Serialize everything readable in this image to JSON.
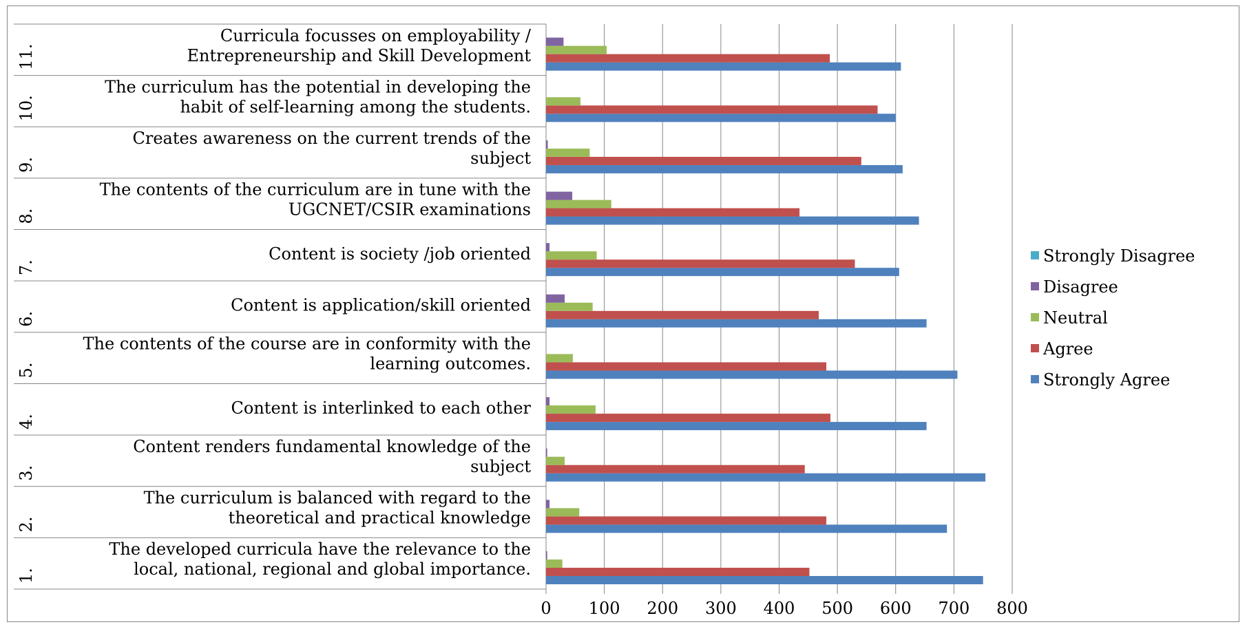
{
  "chart_data": {
    "type": "bar",
    "orientation": "horizontal",
    "categories": [
      {
        "num": "1.",
        "label": [
          "The developed curricula have the relevance to the",
          "local, national, regional and global importance."
        ]
      },
      {
        "num": "2.",
        "label": [
          "The curriculum is balanced with regard to the",
          "theoretical and practical knowledge"
        ]
      },
      {
        "num": "3.",
        "label": [
          "Content renders fundamental knowledge of the",
          "subject"
        ]
      },
      {
        "num": "4.",
        "label": [
          "Content is interlinked to each other"
        ]
      },
      {
        "num": "5.",
        "label": [
          "The contents of the course are in conformity with the",
          "learning outcomes."
        ]
      },
      {
        "num": "6.",
        "label": [
          "Content is application/skill oriented"
        ]
      },
      {
        "num": "7.",
        "label": [
          "Content is society /job oriented"
        ]
      },
      {
        "num": "8.",
        "label": [
          "The contents of the curriculum are in tune with the",
          "UGCNET/CSIR examinations"
        ]
      },
      {
        "num": "9.",
        "label": [
          "Creates awareness on the current trends of the",
          "subject"
        ]
      },
      {
        "num": "10.",
        "label": [
          "The curriculum has the potential in developing the",
          "habit of self-learning among the students."
        ]
      },
      {
        "num": "11.",
        "label": [
          "Curricula focusses on employability /",
          "Entrepreneurship and Skill Development"
        ]
      }
    ],
    "series": [
      {
        "name": "Strongly Agree",
        "color": "#4f81bd",
        "values": [
          750,
          688,
          754,
          653,
          706,
          653,
          606,
          640,
          612,
          600,
          609
        ]
      },
      {
        "name": "Agree",
        "color": "#c0504d",
        "values": [
          452,
          481,
          444,
          488,
          481,
          468,
          530,
          435,
          541,
          569,
          487
        ]
      },
      {
        "name": "Neutral",
        "color": "#9bbb59",
        "values": [
          28,
          57,
          32,
          85,
          46,
          80,
          87,
          112,
          75,
          59,
          104
        ]
      },
      {
        "name": "Disagree",
        "color": "#8064a2",
        "values": [
          2,
          6,
          2,
          6,
          0,
          32,
          6,
          45,
          3,
          0,
          30
        ]
      },
      {
        "name": "Strongly Disagree",
        "color": "#4bacc6",
        "values": [
          0,
          0,
          0,
          0,
          0,
          0,
          0,
          0,
          0,
          0,
          0
        ]
      }
    ],
    "xlim": [
      0,
      800
    ],
    "xticks": [
      0,
      100,
      200,
      300,
      400,
      500,
      600,
      700,
      800
    ],
    "grid": true,
    "gridline_color": "#868686",
    "legend": {
      "position": "right",
      "order": [
        "Strongly Disagree",
        "Disagree",
        "Neutral",
        "Agree",
        "Strongly Agree"
      ]
    },
    "title": "",
    "xlabel": "",
    "ylabel": ""
  }
}
